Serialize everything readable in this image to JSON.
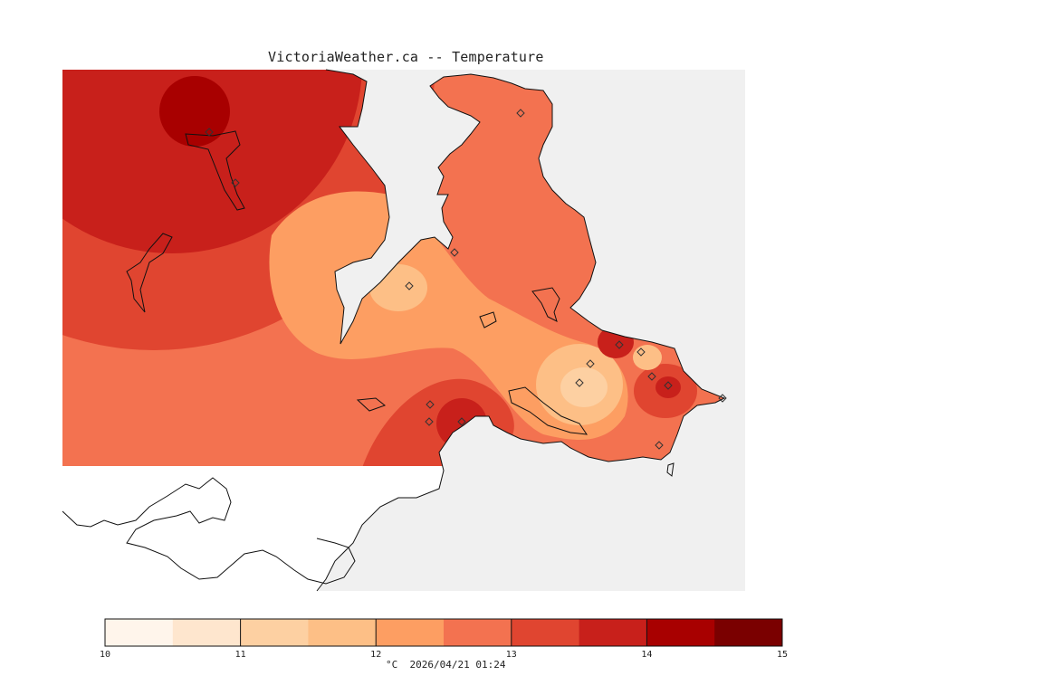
{
  "title": "VictoriaWeather.ca -- Temperature",
  "colors": {
    "background_water": "#f0f0f0",
    "land_outline": "#111111",
    "bins": [
      "#fff5eb",
      "#fee6ce",
      "#fdd0a2",
      "#fdbf86",
      "#fd9e62",
      "#f37250",
      "#e04530",
      "#c8201b",
      "#a80000",
      "#7a0000"
    ]
  },
  "legend": {
    "ticks": [
      "10",
      "11",
      "12",
      "13",
      "14",
      "15"
    ],
    "caption": "°C  2026/04/21 01:24"
  },
  "chart_data": {
    "type": "heatmap",
    "variable": "Temperature",
    "unit": "°C",
    "scale_min": 10,
    "scale_max": 15,
    "bin_edges": [
      10,
      10.5,
      11,
      11.5,
      12,
      12.5,
      13,
      13.5,
      14,
      14.5,
      15
    ],
    "stations": 16
  }
}
